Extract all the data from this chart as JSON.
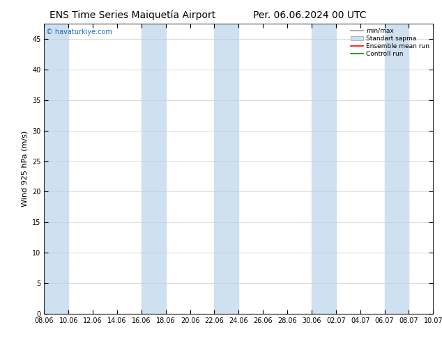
{
  "title_left": "ENS Time Series Maiquetía Airport",
  "title_right": "Per. 06.06.2024 00 UTC",
  "ylabel": "Wind 925 hPa (m/s)",
  "watermark": "© havaturkiye.com",
  "ylim": [
    0,
    47.5
  ],
  "yticks": [
    0,
    5,
    10,
    15,
    20,
    25,
    30,
    35,
    40,
    45
  ],
  "xtick_labels": [
    "08.06",
    "10.06",
    "12.06",
    "14.06",
    "16.06",
    "18.06",
    "20.06",
    "22.06",
    "24.06",
    "26.06",
    "28.06",
    "30.06",
    "02.07",
    "04.07",
    "06.07",
    "08.07",
    "10.07"
  ],
  "background_color": "#ffffff",
  "plot_bg_color": "#ffffff",
  "band_color": "#cfe0f0",
  "band_alpha": 1.0,
  "band_indices": [
    0,
    4,
    7,
    11,
    14
  ],
  "title_fontsize": 10,
  "tick_fontsize": 7,
  "ylabel_fontsize": 8,
  "watermark_color": "#1a6db5"
}
